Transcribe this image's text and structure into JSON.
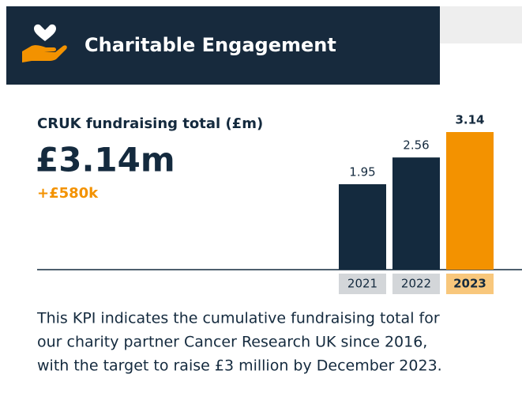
{
  "header": {
    "title": "Charitable Engagement"
  },
  "kpi": {
    "label": "CRUK fundraising total (£m)",
    "value": "£3.14m",
    "change": "+£580k"
  },
  "chart_data": {
    "type": "bar",
    "categories": [
      "2021",
      "2022",
      "2023"
    ],
    "values": [
      1.95,
      2.56,
      3.14
    ],
    "colors": [
      "#142a3e",
      "#142a3e",
      "#f39200"
    ],
    "label_box_colors": [
      "#d3d6d9",
      "#d3d6d9",
      "#f8c77c"
    ]
  },
  "description": [
    "This KPI indicates the cumulative fundraising total for",
    "our charity partner Cancer Research UK since 2016,",
    "with the target to raise £3 million by December 2023."
  ]
}
